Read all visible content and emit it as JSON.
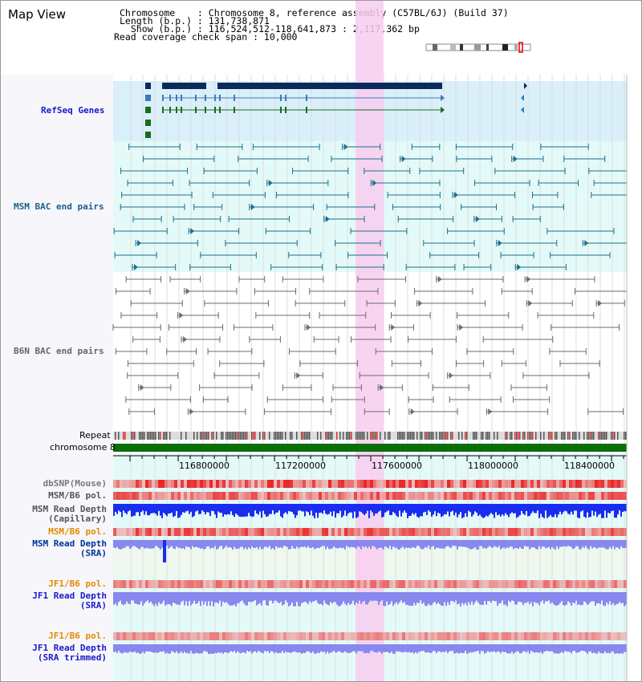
{
  "page": {
    "title": "Map View"
  },
  "info": {
    "line1": "Chromosome    : Chromosome 8, reference assembly (C57BL/6J) (Build 37)",
    "line2": "Length (b.p.) : 131,738,871",
    " line3": "",
    "line3": "  Show (b.p.) : 116,524,512-118,641,873 : 2,117,362 bp",
    "line4": "Read coverage check span : 10,000"
  },
  "tracks": {
    "refseq": "RefSeq Genes",
    "msm_bac": "MSM BAC end pairs",
    "b6n_bac": "B6N BAC end pairs",
    "repeat": "Repeat",
    "chromosome": "chromosome 8",
    "dbsnp": "dbSNP(Mouse)",
    "msm_b6_pol_1": "MSM/B6 pol.",
    "msm_depth_cap": "MSM Read Depth\n(Capillary)",
    "msm_b6_pol_2": "MSM/B6 pol.",
    "msm_depth_sra": "MSM Read Depth\n(SRA)",
    "jf1_b6_pol_1": "JF1/B6 pol.",
    "jf1_depth_sra": "JF1 Read Depth\n(SRA)",
    "jf1_b6_pol_2": "JF1/B6 pol.",
    "jf1_depth_trim": "JF1 Read Depth\n(SRA trimmed)"
  },
  "axis": {
    "ticks": [
      "116800000",
      "117200000",
      "117600000",
      "118000000",
      "118400000"
    ]
  },
  "colors": {
    "refseq_bg": "#d9effa",
    "bac_bg": "#e3faf9",
    "highlight": "#f8ccf0",
    "gene_dark": "#0a2a5a",
    "gene_mid": "#3a7eb8",
    "gene_green": "#1b6b1b",
    "msm_pair": "#1d6f8c",
    "b6n_pair": "#6b6b6b",
    "chromosome": "#0a6e0a",
    "depth_blue": "#1a2cf0",
    "depth_light": "#8888ee",
    "msm_label": "#003399",
    "pol_orange": "#e28a00",
    "jf1_label": "#1a1acc"
  }
}
